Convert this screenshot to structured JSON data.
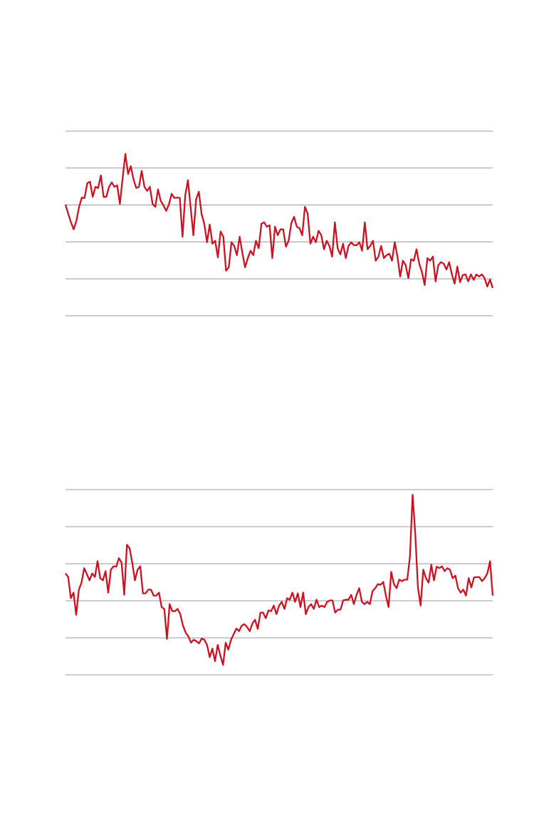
{
  "chart_data": [
    {
      "type": "line",
      "color": "#cc1122",
      "grid": true,
      "tick_labels": false,
      "ylim": [
        0,
        5
      ],
      "yticks": [
        0,
        1,
        2,
        3,
        4,
        5
      ],
      "values": [
        3.01,
        2.76,
        2.53,
        2.34,
        2.57,
        2.95,
        3.2,
        3.19,
        3.59,
        3.63,
        3.22,
        3.49,
        3.46,
        3.8,
        3.22,
        3.22,
        3.49,
        3.61,
        3.49,
        3.53,
        3.03,
        3.73,
        4.38,
        3.84,
        4.05,
        3.69,
        3.46,
        3.49,
        3.92,
        3.49,
        3.38,
        3.49,
        3.03,
        2.95,
        3.42,
        3.11,
        2.99,
        2.84,
        3.01,
        3.3,
        3.19,
        3.2,
        3.19,
        2.14,
        3.26,
        3.67,
        2.92,
        2.18,
        3.15,
        3.36,
        2.76,
        2.49,
        1.99,
        2.47,
        1.95,
        2.03,
        1.58,
        2.28,
        2.14,
        1.22,
        1.31,
        1.99,
        1.89,
        1.64,
        2.14,
        1.7,
        1.31,
        1.56,
        1.76,
        1.64,
        2.03,
        1.83,
        2.49,
        2.53,
        2.41,
        2.45,
        1.56,
        2.41,
        2.18,
        2.34,
        2.34,
        1.87,
        2.03,
        2.51,
        2.68,
        2.41,
        2.37,
        2.18,
        2.95,
        2.76,
        1.95,
        2.14,
        1.99,
        2.3,
        2.18,
        1.8,
        2.03,
        1.89,
        1.6,
        2.53,
        1.83,
        1.66,
        1.95,
        1.56,
        1.89,
        1.99,
        1.91,
        1.91,
        1.99,
        1.76,
        2.53,
        1.8,
        1.89,
        2.03,
        1.49,
        1.6,
        1.89,
        1.56,
        1.64,
        1.68,
        1.49,
        1.99,
        1.6,
        1.06,
        1.49,
        1.37,
        1.02,
        1.53,
        1.49,
        1.8,
        1.41,
        1.18,
        0.83,
        1.56,
        1.49,
        1.6,
        0.93,
        1.37,
        1.45,
        1.41,
        1.25,
        1.45,
        1.12,
        0.87,
        1.33,
        0.91,
        1.1,
        1.12,
        0.93,
        1.12,
        0.97,
        1.12,
        1.06,
        1.12,
        1.02,
        0.79,
        0.98,
        0.75
      ]
    },
    {
      "type": "line",
      "color": "#cc1122",
      "grid": true,
      "tick_labels": false,
      "ylim": [
        0,
        5
      ],
      "yticks": [
        0,
        1,
        2,
        3,
        4,
        5
      ],
      "values": [
        2.74,
        2.64,
        2.07,
        2.22,
        1.62,
        2.3,
        2.49,
        2.88,
        2.72,
        2.55,
        2.74,
        2.64,
        3.07,
        2.61,
        2.55,
        2.8,
        2.22,
        2.84,
        2.93,
        2.92,
        3.15,
        3.03,
        2.16,
        3.51,
        3.42,
        3.03,
        2.55,
        2.84,
        2.93,
        2.2,
        2.2,
        2.3,
        2.3,
        2.14,
        2.14,
        2.22,
        1.83,
        1.78,
        0.97,
        1.91,
        1.72,
        1.72,
        1.78,
        1.64,
        1.33,
        1.14,
        1.04,
        0.87,
        0.95,
        0.91,
        0.85,
        0.98,
        0.95,
        0.81,
        0.48,
        0.71,
        0.37,
        0.81,
        0.52,
        0.27,
        0.87,
        0.68,
        0.95,
        1.1,
        1.25,
        1.18,
        1.33,
        1.37,
        1.29,
        1.18,
        1.39,
        1.49,
        1.24,
        1.68,
        1.68,
        1.53,
        1.74,
        1.72,
        1.87,
        1.64,
        1.87,
        1.97,
        1.78,
        2.07,
        2.03,
        2.22,
        1.97,
        2.2,
        1.83,
        2.22,
        1.64,
        1.83,
        1.91,
        1.78,
        2.03,
        1.83,
        1.87,
        1.83,
        1.97,
        2.01,
        2.01,
        1.68,
        1.76,
        1.76,
        2.01,
        2.03,
        2.03,
        2.16,
        1.91,
        2.16,
        2.34,
        1.97,
        1.91,
        1.97,
        1.91,
        2.26,
        2.34,
        2.45,
        2.43,
        2.51,
        2.14,
        1.83,
        2.78,
        2.45,
        2.34,
        2.57,
        2.53,
        2.57,
        2.57,
        3.19,
        4.86,
        3.8,
        2.36,
        1.87,
        2.84,
        2.61,
        2.49,
        2.97,
        2.55,
        2.92,
        2.88,
        2.93,
        2.8,
        2.88,
        2.84,
        2.61,
        2.68,
        2.34,
        2.22,
        2.3,
        2.14,
        2.61,
        2.36,
        2.63,
        2.64,
        2.64,
        2.53,
        2.61,
        2.74,
        3.07,
        2.14
      ]
    }
  ]
}
